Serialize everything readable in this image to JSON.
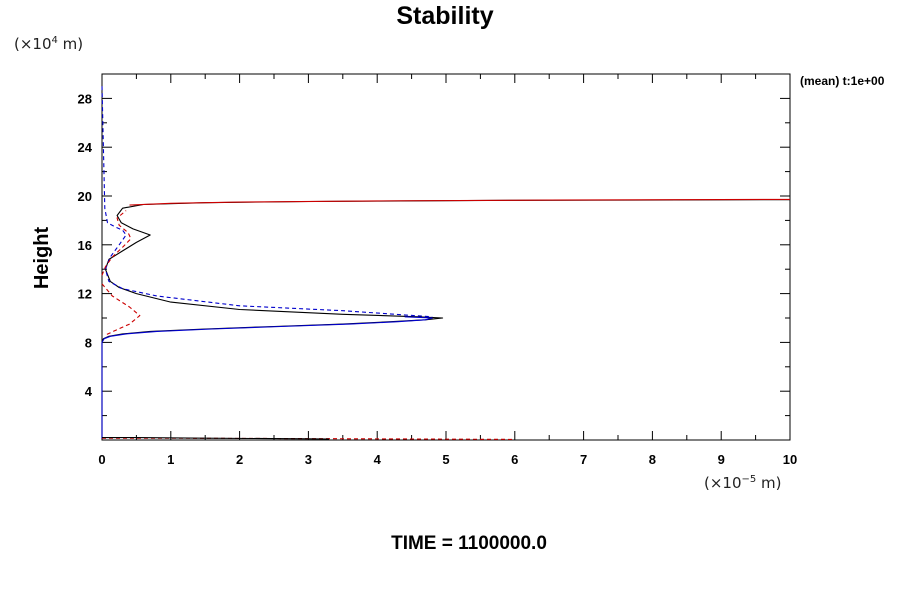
{
  "chart_data": {
    "type": "line",
    "title": "Stability",
    "xlabel": "",
    "ylabel": "Height",
    "x_unit": {
      "base": "(×10",
      "exp": "−5",
      "tail": " m)"
    },
    "y_unit": {
      "base": "(×10",
      "exp": "4",
      "tail": " m)"
    },
    "xlim": [
      0,
      10
    ],
    "ylim": [
      0,
      30
    ],
    "x_ticks": [
      0,
      1,
      2,
      3,
      4,
      5,
      6,
      7,
      8,
      9,
      10
    ],
    "y_ticks": [
      4,
      8,
      12,
      16,
      20,
      24,
      28
    ],
    "grid": false,
    "annotation": "(mean) t:1e+00",
    "footer": "TIME = 1100000.0",
    "series": [
      {
        "color": "#000000",
        "dash": "solid",
        "points": [
          [
            0.0,
            0.1
          ],
          [
            0.0,
            8.0
          ],
          [
            0.02,
            8.3
          ],
          [
            0.1,
            8.5
          ],
          [
            0.3,
            8.7
          ],
          [
            0.7,
            8.9
          ],
          [
            1.5,
            9.1
          ],
          [
            2.5,
            9.3
          ],
          [
            3.5,
            9.5
          ],
          [
            4.2,
            9.7
          ],
          [
            4.7,
            9.85
          ],
          [
            4.95,
            10.0
          ],
          [
            4.6,
            10.1
          ],
          [
            3.5,
            10.3
          ],
          [
            2.0,
            10.7
          ],
          [
            1.0,
            11.3
          ],
          [
            0.5,
            12.0
          ],
          [
            0.25,
            12.5
          ],
          [
            0.12,
            13.0
          ],
          [
            0.05,
            14.0
          ],
          [
            0.1,
            14.8
          ],
          [
            0.3,
            15.5
          ],
          [
            0.5,
            16.2
          ],
          [
            0.7,
            16.8
          ],
          [
            0.45,
            17.3
          ],
          [
            0.28,
            17.8
          ],
          [
            0.22,
            18.4
          ],
          [
            0.3,
            19.0
          ],
          [
            0.6,
            19.3
          ],
          [
            1.5,
            19.45
          ],
          [
            3.0,
            19.55
          ],
          [
            6.0,
            19.65
          ],
          [
            10.0,
            19.7
          ]
        ]
      },
      {
        "color": "#0000cc",
        "dash": "solid",
        "points": [
          [
            0.0,
            0.1
          ],
          [
            0.0,
            8.0
          ],
          [
            0.03,
            8.3
          ],
          [
            0.12,
            8.5
          ],
          [
            0.35,
            8.7
          ],
          [
            0.8,
            8.9
          ],
          [
            1.6,
            9.1
          ],
          [
            2.6,
            9.3
          ],
          [
            3.6,
            9.5
          ],
          [
            4.3,
            9.7
          ],
          [
            4.7,
            9.85
          ],
          [
            4.8,
            10.0
          ],
          [
            4.4,
            10.1
          ]
        ]
      },
      {
        "color": "#0000cc",
        "dash": "4,3",
        "points": [
          [
            0.0,
            29.0
          ],
          [
            0.02,
            24.0
          ],
          [
            0.04,
            19.0
          ],
          [
            0.08,
            17.8
          ],
          [
            0.18,
            17.5
          ],
          [
            0.3,
            17.2
          ],
          [
            0.35,
            16.8
          ],
          [
            0.25,
            16.0
          ],
          [
            0.12,
            15.0
          ],
          [
            0.05,
            14.0
          ],
          [
            0.1,
            13.0
          ],
          [
            0.3,
            12.4
          ],
          [
            0.8,
            11.8
          ],
          [
            2.0,
            11.0
          ],
          [
            3.5,
            10.6
          ],
          [
            4.8,
            10.1
          ]
        ]
      },
      {
        "color": "#cc0000",
        "dash": "4,3",
        "points": [
          [
            0.0,
            13.5
          ],
          [
            0.05,
            14.2
          ],
          [
            0.15,
            15.0
          ],
          [
            0.3,
            15.8
          ],
          [
            0.42,
            16.5
          ],
          [
            0.38,
            17.0
          ],
          [
            0.25,
            17.6
          ],
          [
            0.22,
            18.2
          ],
          [
            0.35,
            18.8
          ]
        ]
      },
      {
        "color": "#cc0000",
        "dash": "4,3",
        "points": [
          [
            0.0,
            12.8
          ],
          [
            0.15,
            11.8
          ],
          [
            0.4,
            10.9
          ],
          [
            0.55,
            10.2
          ],
          [
            0.4,
            9.5
          ],
          [
            0.2,
            9.0
          ],
          [
            0.05,
            8.6
          ]
        ]
      },
      {
        "color": "#cc0000",
        "dash": "solid",
        "points": [
          [
            0.4,
            19.25
          ],
          [
            1.0,
            19.4
          ],
          [
            2.0,
            19.5
          ],
          [
            4.0,
            19.6
          ],
          [
            6.5,
            19.66
          ],
          [
            10.0,
            19.72
          ]
        ]
      },
      {
        "color": "#cc0000",
        "dash": "4,3",
        "points": [
          [
            0.0,
            0.15
          ],
          [
            1.0,
            0.15
          ],
          [
            2.5,
            0.12
          ],
          [
            4.5,
            0.08
          ],
          [
            6.0,
            0.05
          ]
        ]
      },
      {
        "color": "#000000",
        "dash": "solid",
        "points": [
          [
            0.0,
            0.2
          ],
          [
            0.5,
            0.2
          ],
          [
            1.5,
            0.15
          ],
          [
            3.0,
            0.1
          ],
          [
            3.3,
            0.08
          ]
        ]
      }
    ]
  }
}
